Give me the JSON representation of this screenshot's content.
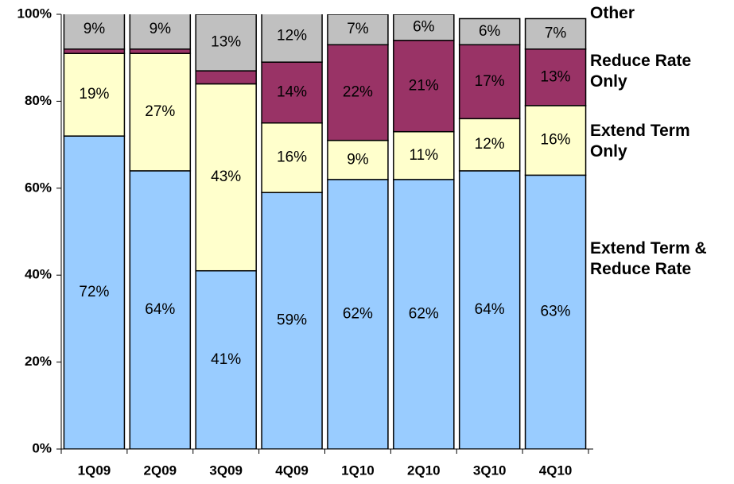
{
  "chart_data": {
    "type": "bar",
    "stacked": true,
    "categories": [
      "1Q09",
      "2Q09",
      "3Q09",
      "4Q09",
      "1Q10",
      "2Q10",
      "3Q10",
      "4Q10"
    ],
    "series": [
      {
        "name": "Extend Term & Reduce Rate",
        "color": "#99ccff",
        "values": [
          72,
          64,
          41,
          59,
          62,
          62,
          64,
          63
        ],
        "value_labels": [
          "72%",
          "64%",
          "41%",
          "59%",
          "62%",
          "62%",
          "64%",
          "63%"
        ],
        "label_color": "#000000"
      },
      {
        "name": "Extend Term Only",
        "color": "#ffffcc",
        "values": [
          19,
          27,
          43,
          16,
          9,
          11,
          12,
          16
        ],
        "value_labels": [
          "19%",
          "27%",
          "43%",
          "16%",
          "9%",
          "11%",
          "12%",
          "16%"
        ],
        "label_color": "#000000"
      },
      {
        "name": "Reduce Rate Only",
        "color": "#993366",
        "values": [
          1,
          1,
          3,
          14,
          22,
          21,
          17,
          13
        ],
        "value_labels": [
          null,
          null,
          null,
          "14%",
          "22%",
          "21%",
          "17%",
          "13%"
        ],
        "label_color": "#ffffff"
      },
      {
        "name": "Other",
        "color": "#c0c0c0",
        "values": [
          9,
          9,
          13,
          12,
          7,
          6,
          6,
          7
        ],
        "value_labels": [
          "9%",
          "9%",
          "13%",
          "12%",
          "7%",
          "6%",
          "6%",
          "7%"
        ],
        "label_color": "#000000"
      }
    ],
    "ylim": [
      0,
      100
    ],
    "yticks": [
      {
        "value": 0,
        "label": "0%"
      },
      {
        "value": 20,
        "label": "20%"
      },
      {
        "value": 40,
        "label": "40%"
      },
      {
        "value": 60,
        "label": "60%"
      },
      {
        "value": 80,
        "label": "80%"
      },
      {
        "value": 100,
        "label": "100%"
      }
    ],
    "grid": false
  }
}
